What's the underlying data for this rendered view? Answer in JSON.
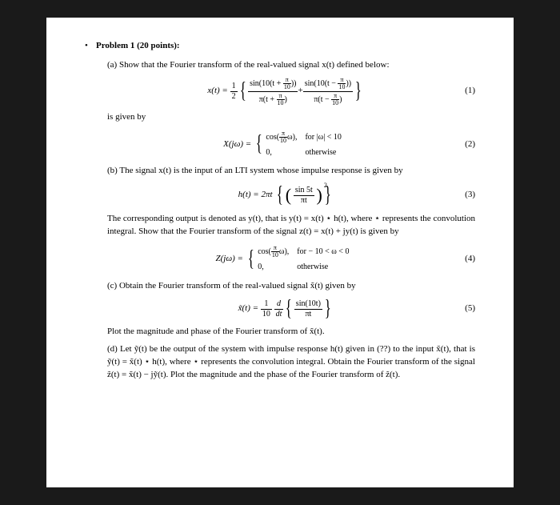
{
  "header": {
    "bullet": "•",
    "title": "Problem 1 (20 points):"
  },
  "parts": {
    "a": {
      "intro": "(a) Show that the Fourier transform of the real-valued signal x(t) defined below:",
      "eq1": {
        "lhs": "x(t) =",
        "half_num": "1",
        "half_den": "2",
        "f1_num_a": "sin(10(t + ",
        "f1_num_b": "))",
        "pi10_num": "π",
        "pi10_den": "10",
        "f1_den_a": "π(t + ",
        "f1_den_b": ")",
        "plus": " + ",
        "f2_num_a": "sin(10(t − ",
        "f2_num_b": "))",
        "f2_den_a": "π(t − ",
        "f2_den_b": ")",
        "num": "(1)"
      },
      "given": "is given by",
      "eq2": {
        "lhs": "X(jω) =",
        "case1_a": "cos(",
        "case1_om_num": "π",
        "case1_om_den": "10",
        "case1_b": "ω),",
        "case1_cond": "for |ω| < 10",
        "case2": "0,",
        "case2_cond": "otherwise",
        "num": "(2)"
      }
    },
    "b": {
      "intro": "(b) The signal x(t) is the input of an LTI system whose impulse response is given by",
      "eq3": {
        "lhs": "h(t) = 2πt",
        "frac_num": "sin 5t",
        "frac_den": "πt",
        "exp": "2",
        "num": "(3)"
      },
      "desc": "The corresponding output is denoted as y(t), that is y(t) = x(t) ⋆ h(t), where ⋆ represents the convolution integral.  Show that the Fourier transform of the signal z(t) = x(t) + jy(t) is given by",
      "eq4": {
        "lhs": "Z(jω) =",
        "case1_a": "cos(",
        "case1_om_num": "π",
        "case1_om_den": "10",
        "case1_b": "ω),",
        "case1_cond": "for  − 10 < ω < 0",
        "case2": "0,",
        "case2_cond": "otherwise",
        "num": "(4)"
      }
    },
    "c": {
      "intro": "(c) Obtain the Fourier transform of the real-valued signal x̃(t) given by",
      "eq5": {
        "lhs": "x̃(t) =",
        "c_num": "1",
        "c_den": "10",
        "d": "d",
        "dt": "dt",
        "frac_num": "sin(10t)",
        "frac_den": "πt",
        "num": "(5)"
      },
      "plot": "Plot the magnitude and phase of the Fourier transform of x̃(t)."
    },
    "d": {
      "text": "(d) Let ỹ(t) be the output of the system with impulse response h(t) given in (??) to the input x̃(t), that is ỹ(t) = x̃(t) ⋆ h(t), where ⋆ represents the convolution integral. Obtain the Fourier transform of the signal z̃(t) = x̃(t) − jỹ(t). Plot the magnitude and the phase of the Fourier transform of z̃(t)."
    }
  }
}
